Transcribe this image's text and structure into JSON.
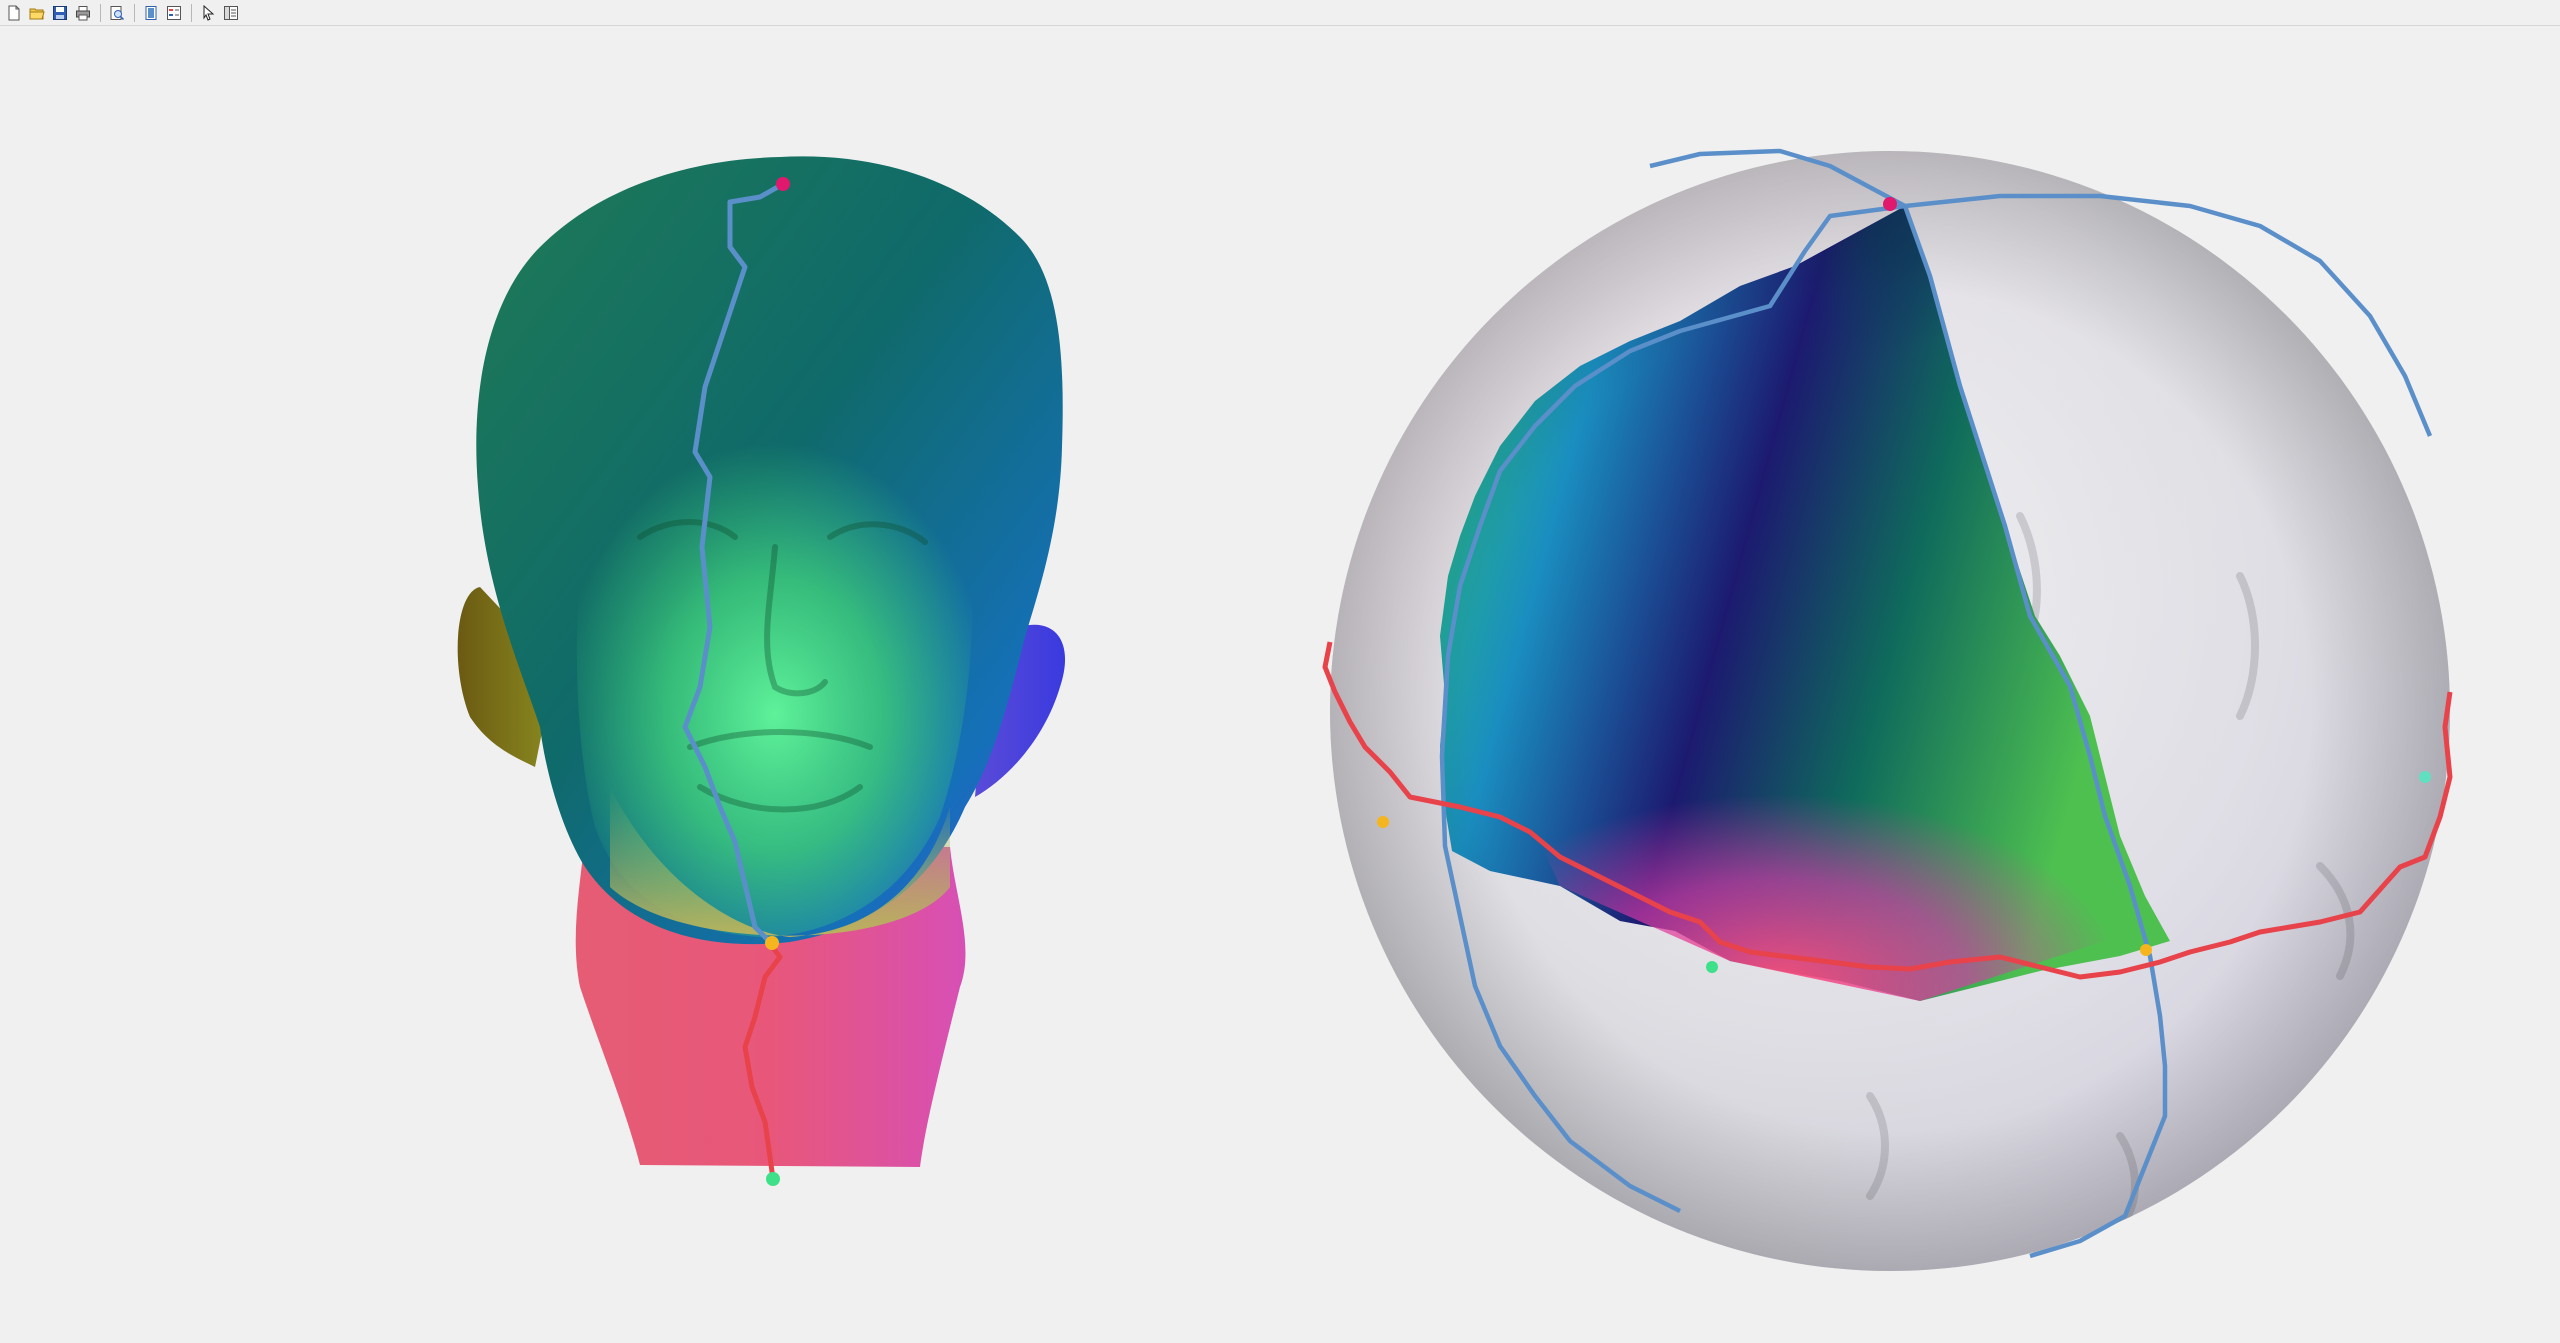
{
  "window": {
    "background_color": "#f0f0f0"
  },
  "toolbar": {
    "buttons": [
      {
        "name": "new-figure-icon",
        "tooltip": ""
      },
      {
        "name": "open-file-icon",
        "tooltip": ""
      },
      {
        "name": "save-icon",
        "tooltip": ""
      },
      {
        "name": "print-icon",
        "tooltip": ""
      },
      {
        "name": "print-preview-icon",
        "tooltip": ""
      },
      {
        "name": "dock-icon",
        "tooltip": ""
      },
      {
        "name": "insert-legend-icon",
        "tooltip": ""
      },
      {
        "name": "pointer-icon",
        "tooltip": ""
      },
      {
        "name": "property-inspector-icon",
        "tooltip": ""
      }
    ]
  },
  "figure": {
    "left_view": {
      "object": "head-mesh",
      "cut_path_colors": [
        "#5b8fc9",
        "#e8424a"
      ],
      "marker_colors": [
        "#e0186e",
        "#f5b51e",
        "#3fe08a"
      ]
    },
    "right_view": {
      "object": "sphere-parameterization",
      "cut_path_colors": [
        "#5b8fc9",
        "#e8424a"
      ],
      "marker_colors": [
        "#e0186e",
        "#f5b51e",
        "#3fe08a"
      ]
    }
  }
}
